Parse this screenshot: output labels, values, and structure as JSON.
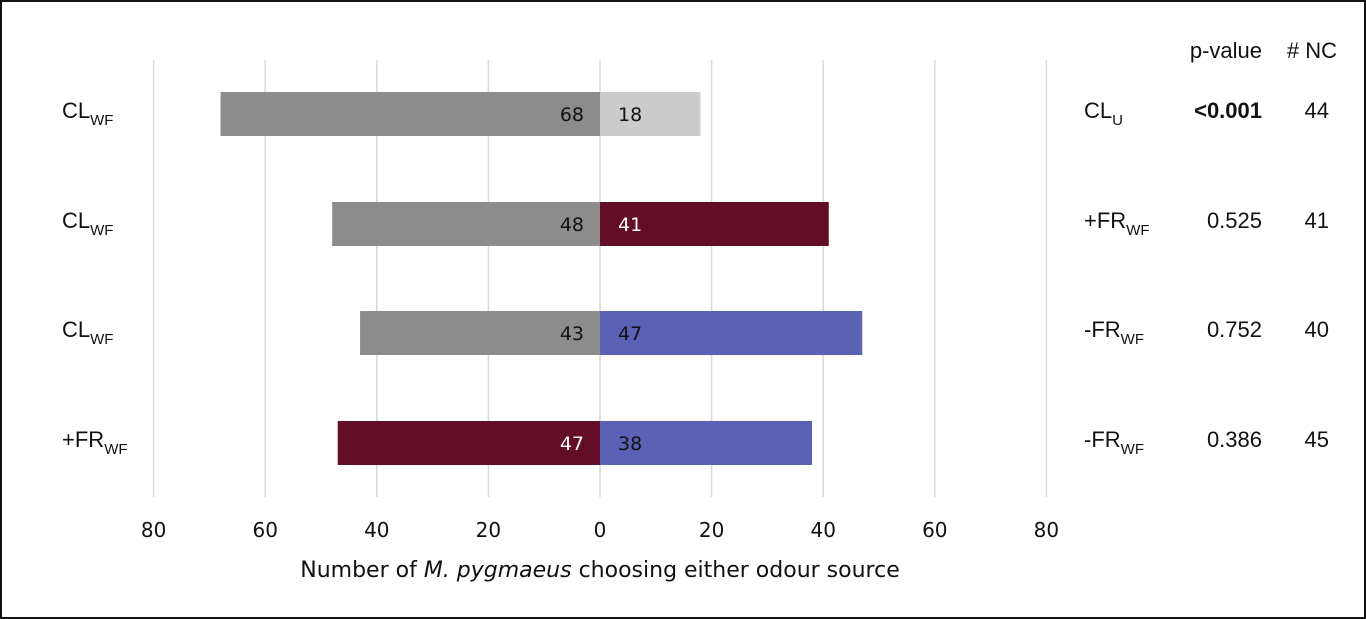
{
  "chart_data": {
    "type": "bar",
    "orientation": "horizontal-diverging",
    "xlabel_parts": [
      "Number of ",
      "M. pygmaeus",
      " choosing either odour source"
    ],
    "xlim": [
      -80,
      80
    ],
    "x_ticks": [
      -80,
      -60,
      -40,
      -20,
      0,
      20,
      40,
      60,
      80
    ],
    "x_tick_labels": [
      "80",
      "60",
      "40",
      "20",
      "0",
      "20",
      "40",
      "60",
      "80"
    ],
    "grid": true,
    "column_headers": {
      "p_value": "p-value",
      "nc": "# NC"
    },
    "rows": [
      {
        "left": {
          "base": "CL",
          "sub": "WF",
          "value": 68,
          "color": "#8c8c8c",
          "label_color": "#111111"
        },
        "right": {
          "base": "CL",
          "sub": "U",
          "value": 18,
          "color": "#cccccc",
          "label_color": "#111111"
        },
        "p_value": "<0.001",
        "p_bold": true,
        "nc": "44"
      },
      {
        "left": {
          "base": "CL",
          "sub": "WF",
          "value": 48,
          "color": "#8c8c8c",
          "label_color": "#111111"
        },
        "right": {
          "base": "+FR",
          "sub": "WF",
          "value": 41,
          "color": "#630d26",
          "label_color": "#ffffff"
        },
        "p_value": "0.525",
        "p_bold": false,
        "nc": "41"
      },
      {
        "left": {
          "base": "CL",
          "sub": "WF",
          "value": 43,
          "color": "#8c8c8c",
          "label_color": "#111111"
        },
        "right": {
          "base": "-FR",
          "sub": "WF",
          "value": 47,
          "color": "#5b61b5",
          "label_color": "#111111"
        },
        "p_value": "0.752",
        "p_bold": false,
        "nc": "40"
      },
      {
        "left": {
          "base": "+FR",
          "sub": "WF",
          "value": 47,
          "color": "#630d26",
          "label_color": "#ffffff"
        },
        "right": {
          "base": "-FR",
          "sub": "WF",
          "value": 38,
          "color": "#5b61b5",
          "label_color": "#111111"
        },
        "p_value": "0.386",
        "p_bold": false,
        "nc": "45"
      }
    ]
  }
}
